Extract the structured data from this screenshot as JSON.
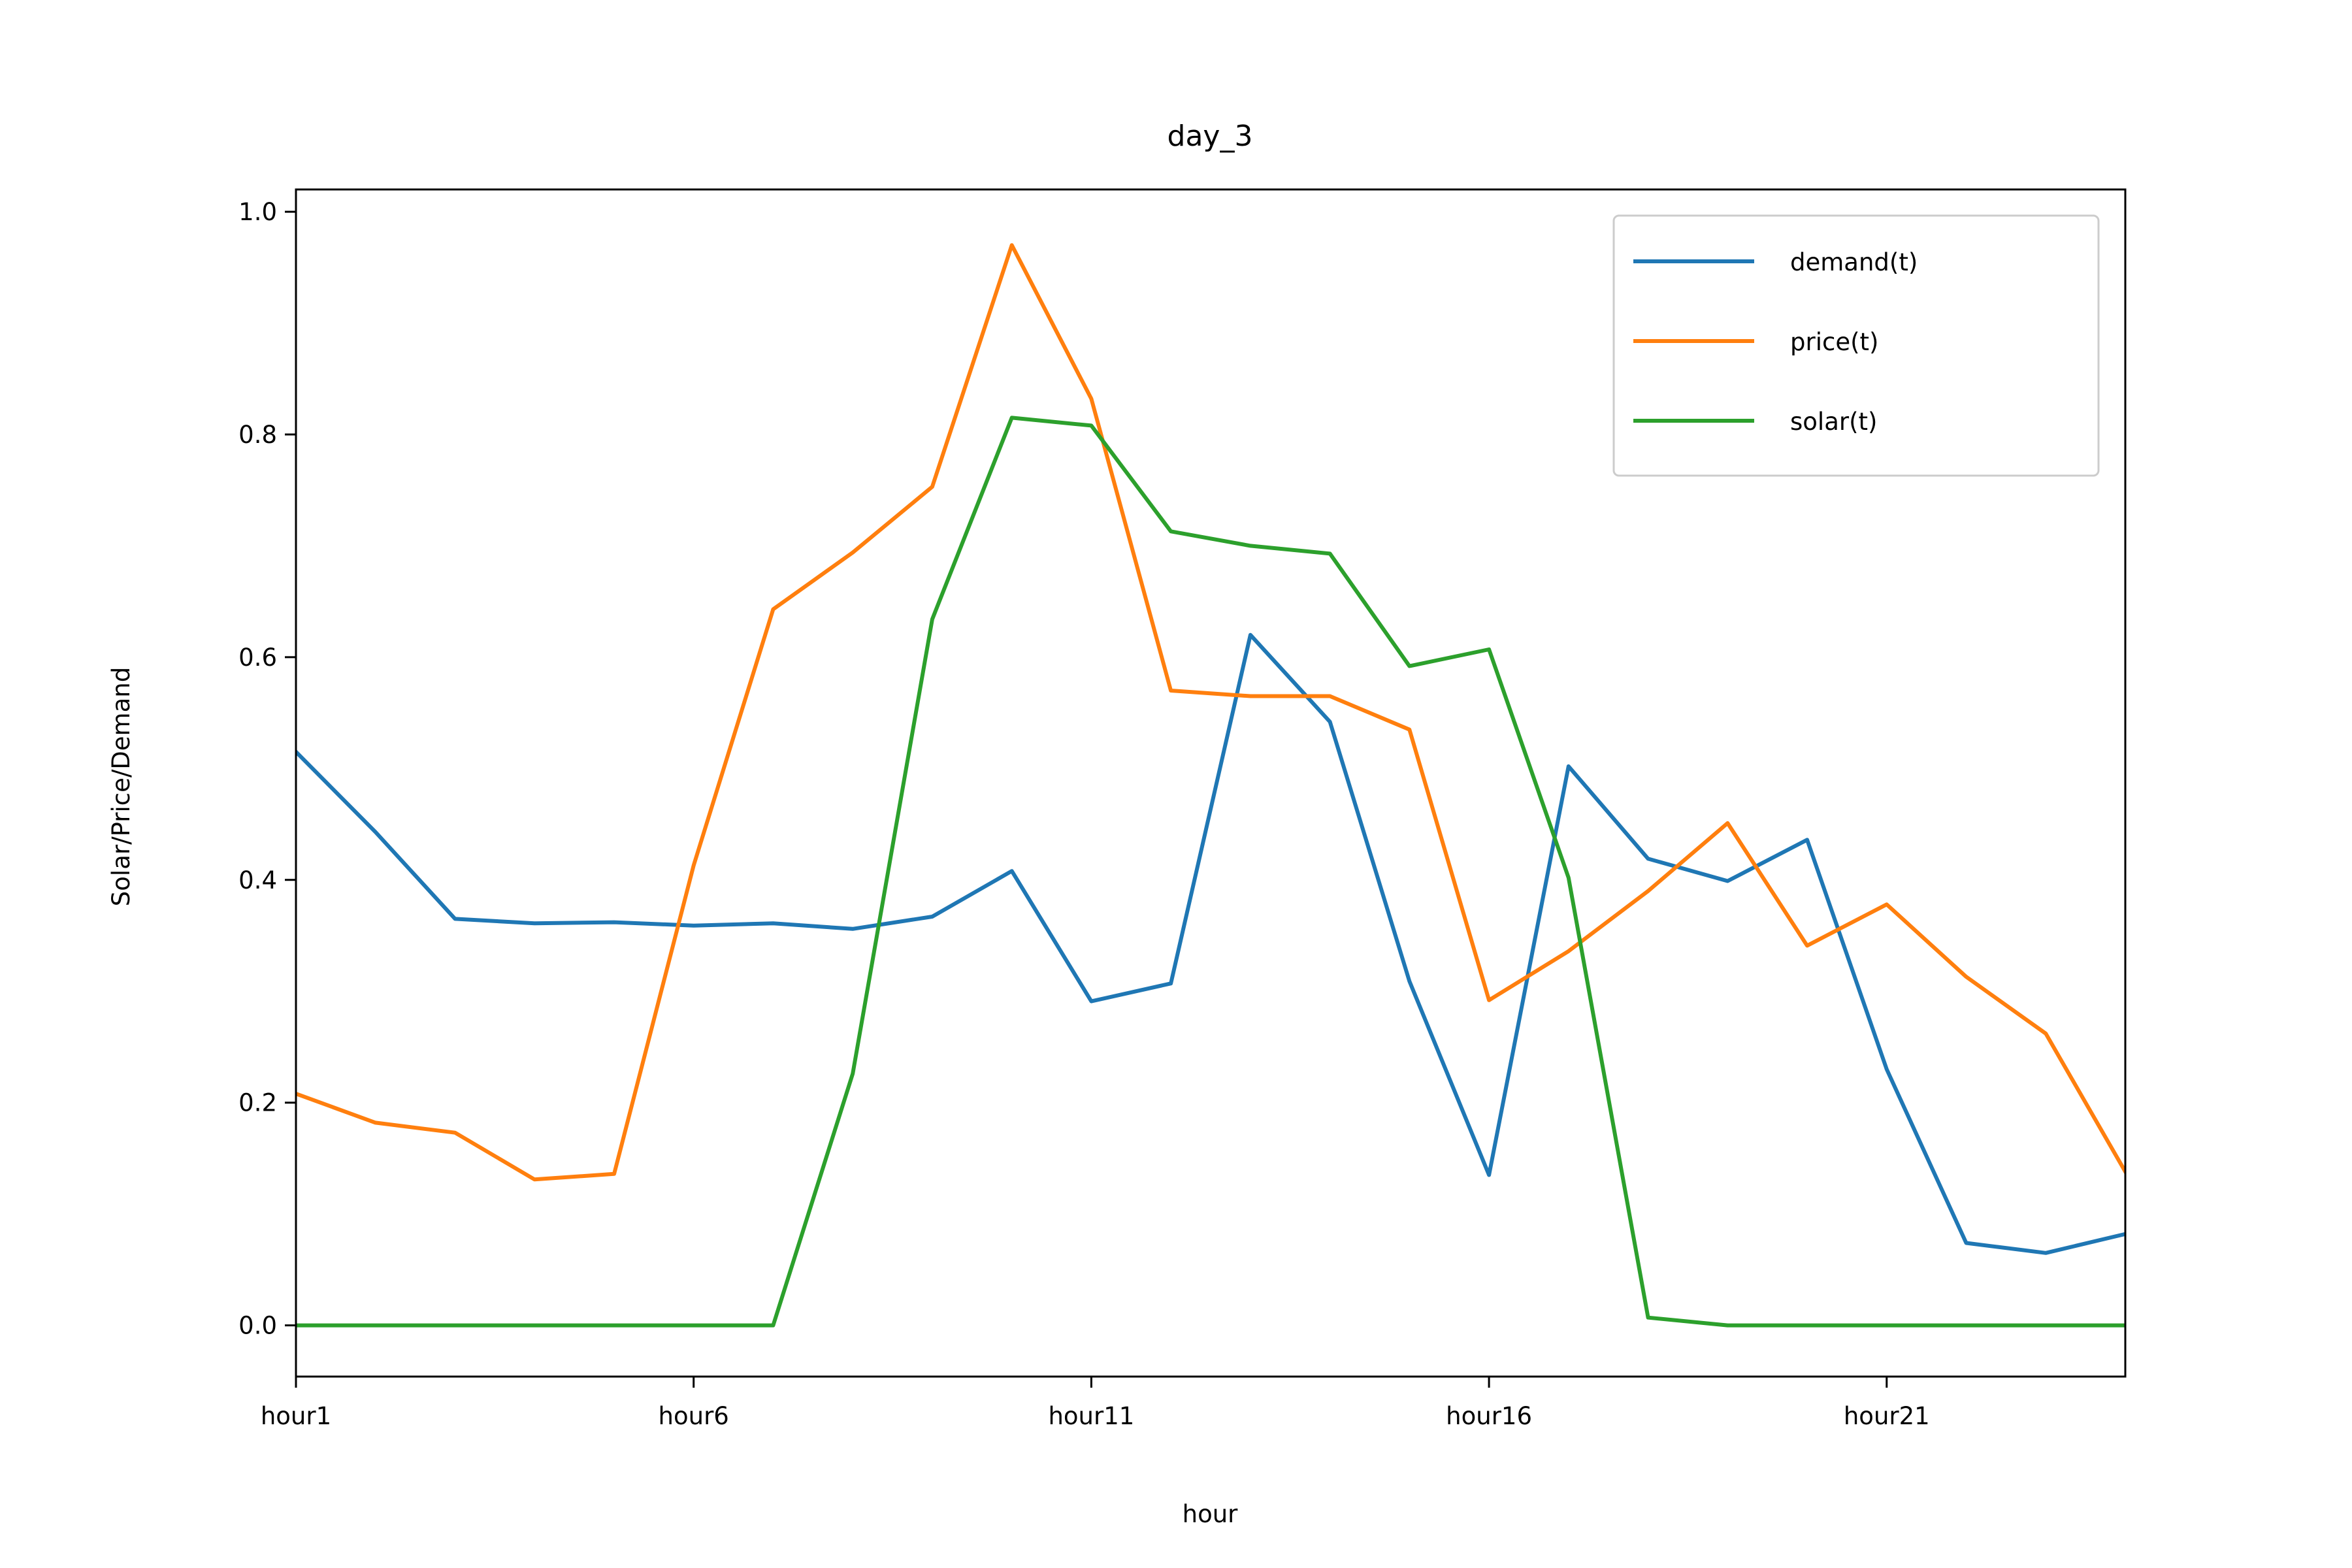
{
  "chart_data": {
    "type": "line",
    "title": "day_3",
    "xlabel": "hour",
    "ylabel": "Solar/Price/Demand",
    "x": [
      "hour1",
      "hour2",
      "hour3",
      "hour4",
      "hour5",
      "hour6",
      "hour7",
      "hour8",
      "hour9",
      "hour10",
      "hour11",
      "hour12",
      "hour13",
      "hour14",
      "hour15",
      "hour16",
      "hour17",
      "hour18",
      "hour19",
      "hour20",
      "hour21",
      "hour22",
      "hour23",
      "hour24"
    ],
    "x_ticks_shown": [
      "hour1",
      "hour6",
      "hour11",
      "hour16",
      "hour21"
    ],
    "ylim": [
      -0.046,
      1.02
    ],
    "y_ticks": [
      "0.0",
      "0.2",
      "0.4",
      "0.6",
      "0.8",
      "1.0"
    ],
    "y_tick_values": [
      0.0,
      0.2,
      0.4,
      0.6,
      0.8,
      1.0
    ],
    "grid": false,
    "legend_position": "top-right",
    "series": [
      {
        "name": "demand(t)",
        "color": "#1f77b4",
        "values": [
          0.515,
          0.443,
          0.365,
          0.361,
          0.362,
          0.359,
          0.361,
          0.356,
          0.367,
          0.408,
          0.291,
          0.307,
          0.62,
          0.542,
          0.309,
          0.135,
          0.502,
          0.419,
          0.399,
          0.436,
          0.23,
          0.074,
          0.065,
          0.082
        ]
      },
      {
        "name": "price(t)",
        "color": "#ff7f0e",
        "values": [
          0.208,
          0.182,
          0.173,
          0.131,
          0.136,
          0.413,
          0.643,
          0.694,
          0.753,
          0.97,
          0.832,
          0.57,
          0.565,
          0.565,
          0.535,
          0.292,
          0.336,
          0.39,
          0.451,
          0.341,
          0.378,
          0.313,
          0.262,
          0.138
        ]
      },
      {
        "name": "solar(t)",
        "color": "#2ca02c",
        "values": [
          0.0,
          0.0,
          0.0,
          0.0,
          0.0,
          0.0,
          0.0,
          0.226,
          0.634,
          0.815,
          0.808,
          0.713,
          0.7,
          0.693,
          0.592,
          0.607,
          0.402,
          0.007,
          0.0,
          0.0,
          0.0,
          0.0,
          0.0,
          0.0
        ]
      }
    ]
  }
}
